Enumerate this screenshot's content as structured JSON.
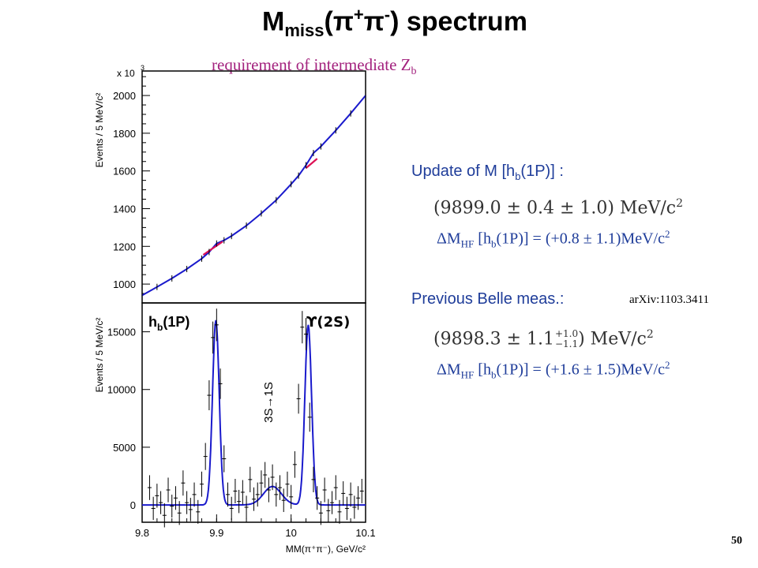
{
  "slide": {
    "title_main": "M",
    "title_sub": "miss",
    "title_paren_open": "(",
    "title_pi1": "π",
    "title_sup1": "+",
    "title_pi2": "π",
    "title_sup2": "-",
    "title_rest": ") spectrum",
    "subtitle": "requirement of intermediate Z",
    "subtitle_sub": "b",
    "page_number": "50"
  },
  "update": {
    "heading_pre": "Update of M [h",
    "heading_sub": "b",
    "heading_post": "(1P)] :",
    "mass_value": "(9899.0 ± 0.4 ± 1.0) MeV/c",
    "mass_power": "2",
    "delta_pre": "ΔM",
    "delta_sub1": "HF",
    "delta_mid": " [h",
    "delta_sub2": "b",
    "delta_post": "(1P)] = (+0.8 ± 1.1)MeV/c",
    "delta_power": "2"
  },
  "previous": {
    "heading": "Previous Belle meas.:",
    "arxiv": "arXiv:1103.3411",
    "mass_value_pre": "(9898.3 ± 1.1",
    "err_up": "+1.0",
    "err_down": "−1.1",
    "mass_value_post": ") MeV/c",
    "mass_power": "2",
    "delta_pre": "ΔM",
    "delta_sub1": "HF",
    "delta_mid": " [h",
    "delta_sub2": "b",
    "delta_post": "(1P)] = (+1.6 ± 1.5)MeV/c",
    "delta_power": "2"
  },
  "chart_data": [
    {
      "type": "line",
      "panel": "top",
      "ylabel": "Events / 5 MeV/c²",
      "y_multiplier_label": "x 10",
      "y_multiplier_exp": "3",
      "xlim": [
        9.8,
        10.1
      ],
      "ylim": [
        900,
        2130
      ],
      "yticks": [
        1000,
        1200,
        1400,
        1600,
        1800,
        2000
      ],
      "series": [
        {
          "color": "#1a1acc",
          "x": [
            9.8,
            9.82,
            9.84,
            9.86,
            9.88,
            9.89,
            9.9,
            9.91,
            9.92,
            9.94,
            9.96,
            9.98,
            10.0,
            10.01,
            10.02,
            10.03,
            10.04,
            10.06,
            10.08,
            10.1
          ],
          "y": [
            940,
            985,
            1030,
            1080,
            1135,
            1170,
            1215,
            1232,
            1255,
            1310,
            1375,
            1445,
            1530,
            1575,
            1630,
            1695,
            1730,
            1815,
            1905,
            2000
          ]
        },
        {
          "color": "#dd1155",
          "x": [
            9.882,
            9.908
          ],
          "y": [
            1155,
            1225
          ]
        },
        {
          "color": "#dd1155",
          "x": [
            10.02,
            10.035
          ],
          "y": [
            1615,
            1665
          ]
        }
      ]
    },
    {
      "type": "scatter",
      "panel": "bottom",
      "xlabel": "MM(π⁺π⁻), GeV/c²",
      "ylabel": "Events / 5 MeV/c²",
      "xlim": [
        9.8,
        10.1
      ],
      "ylim": [
        -1500,
        17500
      ],
      "xticks": [
        9.8,
        9.9,
        10.0,
        10.1
      ],
      "xtick_labels": [
        "9.8",
        "9.9",
        "10",
        "10.1"
      ],
      "yticks": [
        0,
        5000,
        10000,
        15000
      ],
      "peaks": [
        {
          "label": "h",
          "label_sub": "b",
          "label_post": "(1P)",
          "x": 9.899,
          "height": 16000
        },
        {
          "label": "ϒ(2S)",
          "x": 10.023,
          "height": 15600
        }
      ],
      "annotation": "3S→1S",
      "annotation_x": 9.965,
      "fit": {
        "baseline": 0,
        "peak1": {
          "x": 9.899,
          "height": 16000,
          "sigma": 0.0045
        },
        "peak2": {
          "x": 10.023,
          "height": 15600,
          "sigma": 0.0045
        },
        "bump": {
          "x": 9.975,
          "height": 1600,
          "sigma": 0.012
        }
      },
      "points": {
        "x": [
          9.81,
          9.815,
          9.82,
          9.825,
          9.83,
          9.835,
          9.84,
          9.845,
          9.85,
          9.855,
          9.86,
          9.865,
          9.87,
          9.875,
          9.88,
          9.885,
          9.89,
          9.895,
          9.9,
          9.905,
          9.91,
          9.915,
          9.92,
          9.925,
          9.93,
          9.935,
          9.94,
          9.945,
          9.95,
          9.955,
          9.96,
          9.965,
          9.97,
          9.975,
          9.98,
          9.985,
          9.99,
          9.995,
          10.0,
          10.005,
          10.01,
          10.015,
          10.02,
          10.025,
          10.03,
          10.035,
          10.04,
          10.045,
          10.05,
          10.055,
          10.06,
          10.065,
          10.07,
          10.075,
          10.08,
          10.085,
          10.09,
          10.095
        ],
        "y": [
          1500,
          -300,
          800,
          200,
          -900,
          1300,
          -100,
          600,
          -700,
          1900,
          200,
          -400,
          900,
          -600,
          1800,
          4200,
          9500,
          14500,
          15600,
          10500,
          4000,
          900,
          -300,
          1200,
          300,
          1100,
          -200,
          2200,
          500,
          900,
          1900,
          2600,
          1300,
          2400,
          900,
          1500,
          400,
          1800,
          700,
          3500,
          9200,
          15400,
          14800,
          7600,
          2200,
          600,
          -700,
          1300,
          -500,
          200,
          1500,
          -600,
          1000,
          -300,
          900,
          -200,
          600,
          1200
        ]
      }
    }
  ]
}
